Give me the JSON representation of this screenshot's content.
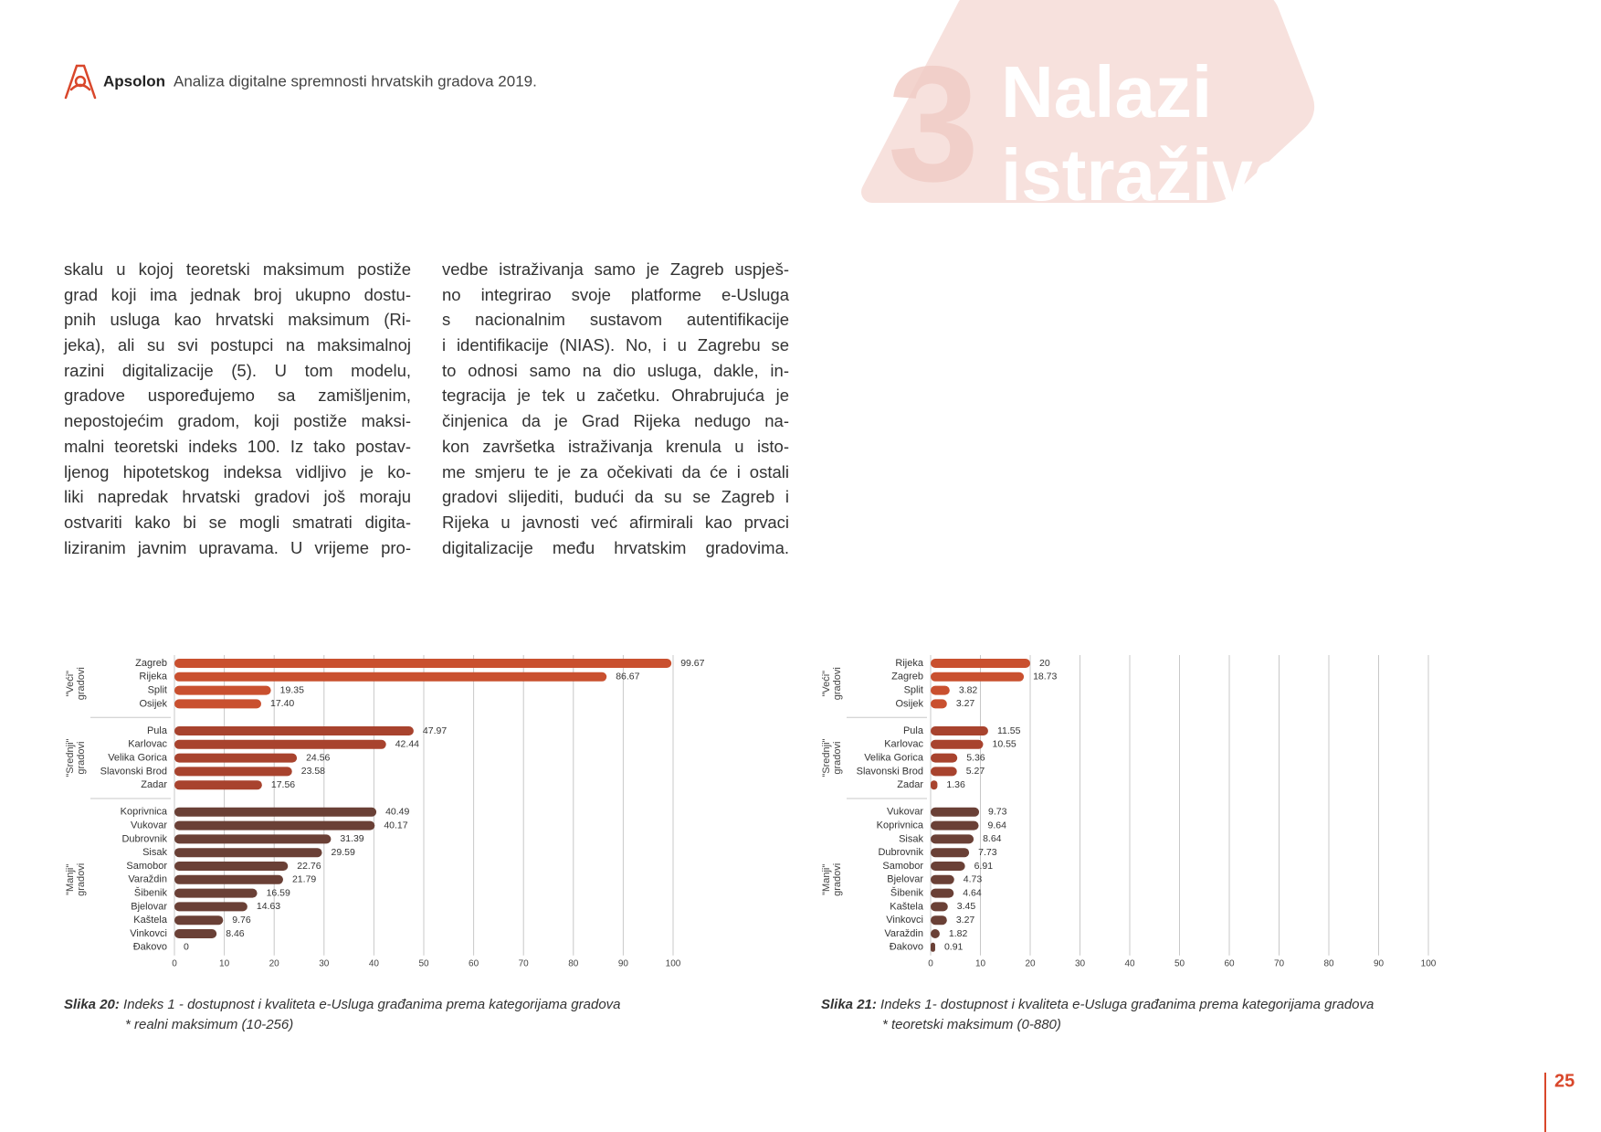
{
  "header": {
    "brand": "Apsolon",
    "title": "Analiza digitalne spremnosti hrvatskih gradova 2019."
  },
  "section": {
    "number": "3",
    "title": [
      "Nalazi",
      "istraživanja"
    ]
  },
  "body": {
    "columns": [
      [
        "skalu u kojoj teoretski maksimum postiže",
        "grad koji ima jednak broj ukupno dostu-",
        "pnih usluga kao hrvatski maksimum (Ri-",
        "jeka), ali su svi postupci na maksimalnoj",
        "razini digitalizacije (5). U tom modelu,",
        "gradove uspoređujemo sa zamišljenim,",
        "nepostojećim gradom, koji postiže maksi-",
        "malni teoretski indeks 100. Iz tako postav-",
        "ljenog hipotetskog indeksa vidljivo je ko-",
        "liki napredak hrvatski gradovi još moraju",
        "ostvariti kako bi se mogli smatrati digita-",
        "liziranim javnim upravama. U vrijeme pro-"
      ],
      [
        "vedbe istraživanja samo je Zagreb uspješ-",
        "no integrirao svoje platforme e-Usluga",
        "s nacionalnim sustavom autentifikacije",
        "i identifikacije (NIAS). No, i u Zagrebu se",
        "to odnosi samo na dio usluga, dakle, in-",
        "tegracija je tek u začetku. Ohrabrujuća je",
        "činjenica da je Grad Rijeka nedugo na-",
        "kon završetka istraživanja krenula u isto-",
        "me smjeru te je za očekivati da će i ostali",
        "gradovi slijediti, budući da su se Zagreb i",
        "Rijeka u javnosti već afirmirali kao prvaci",
        "digitalizacije među hrvatskim gradovima."
      ]
    ]
  },
  "chart_data": [
    {
      "type": "bar",
      "orientation": "horizontal",
      "groups": [
        {
          "name": [
            "\"Veći\"",
            "gradovi"
          ],
          "color": "#c9502f",
          "categories": [
            "Zagreb",
            "Rijeka",
            "Split",
            "Osijek"
          ],
          "values": [
            99.67,
            86.67,
            19.35,
            17.4
          ],
          "value_labels": [
            "99.67",
            "86.67",
            "19.35",
            "17.40"
          ]
        },
        {
          "name": [
            "\"Srednji\"",
            "gradovi"
          ],
          "color": "#a8432e",
          "categories": [
            "Pula",
            "Karlovac",
            "Velika Gorica",
            "Slavonski Brod",
            "Zadar"
          ],
          "values": [
            47.97,
            42.44,
            24.56,
            23.58,
            17.56
          ]
        },
        {
          "name": [
            "\"Manji\"",
            "gradovi"
          ],
          "color": "#6a4036",
          "categories": [
            "Koprivnica",
            "Vukovar",
            "Dubrovnik",
            "Sisak",
            "Samobor",
            "Varaždin",
            "Šibenik",
            "Bjelovar",
            "Kaštela",
            "Vinkovci",
            "Đakovo"
          ],
          "values": [
            40.49,
            40.17,
            31.39,
            29.59,
            22.76,
            21.79,
            16.59,
            14.63,
            9.76,
            8.46,
            0
          ]
        }
      ],
      "xlim": [
        0,
        100
      ],
      "xticks": [
        0,
        10,
        20,
        30,
        40,
        50,
        60,
        70,
        80,
        90,
        100
      ],
      "grid": true,
      "caption": {
        "label": "Slika 20:",
        "text": "Indeks 1 - dostupnost i kvaliteta e-Usluga građanima prema kategorijama gradova",
        "note": "* realni maksimum (10-256)"
      }
    },
    {
      "type": "bar",
      "orientation": "horizontal",
      "groups": [
        {
          "name": [
            "\"Veći\"",
            "gradovi"
          ],
          "color": "#c9502f",
          "categories": [
            "Rijeka",
            "Zagreb",
            "Split",
            "Osijek"
          ],
          "values": [
            20,
            18.73,
            3.82,
            3.27
          ]
        },
        {
          "name": [
            "\"Srednji\"",
            "gradovi"
          ],
          "color": "#a8432e",
          "categories": [
            "Pula",
            "Karlovac",
            "Velika Gorica",
            "Slavonski Brod",
            "Zadar"
          ],
          "values": [
            11.55,
            10.55,
            5.36,
            5.27,
            1.36
          ]
        },
        {
          "name": [
            "\"Manji\"",
            "gradovi"
          ],
          "color": "#6a4036",
          "categories": [
            "Vukovar",
            "Koprivnica",
            "Sisak",
            "Dubrovnik",
            "Samobor",
            "Bjelovar",
            "Šibenik",
            "Kaštela",
            "Vinkovci",
            "Varaždin",
            "Đakovo"
          ],
          "values": [
            9.73,
            9.64,
            8.64,
            7.73,
            6.91,
            4.73,
            4.64,
            3.45,
            3.27,
            1.82,
            0.91
          ]
        }
      ],
      "xlim": [
        0,
        100
      ],
      "xticks": [
        0,
        10,
        20,
        30,
        40,
        50,
        60,
        70,
        80,
        90,
        100
      ],
      "grid": true,
      "caption": {
        "label": "Slika 21:",
        "text": "Indeks 1- dostupnost i kvaliteta e-Usluga građanima prema kategorijama gradova",
        "note": "* teoretski maksimum (0-880)"
      }
    }
  ],
  "page_number": "25"
}
